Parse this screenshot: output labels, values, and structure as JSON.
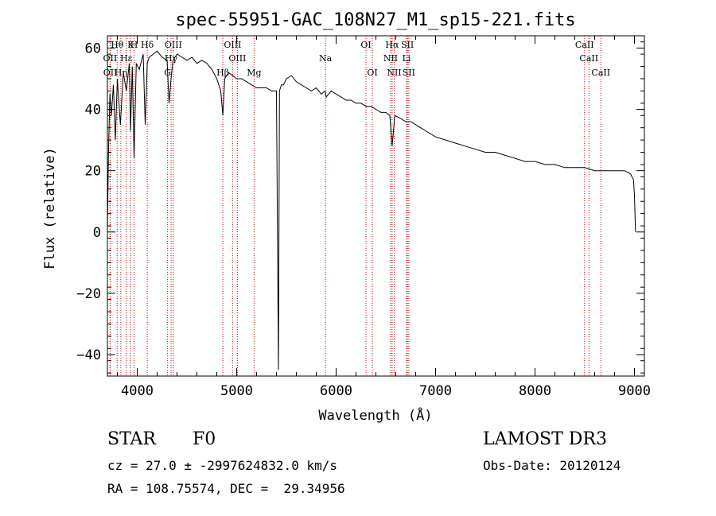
{
  "colors": {
    "axis": "#000000",
    "spectrum": "#000000",
    "line_marker": "#cc0000"
  },
  "chart_data": {
    "type": "line",
    "title": "spec-55951-GAC_108N27_M1_sp15-221.fits",
    "xlabel": "Wavelength (Å)",
    "ylabel": "Flux (relative)",
    "xlim": [
      3700,
      9100
    ],
    "ylim": [
      -47,
      64
    ],
    "xticks": [
      4000,
      5000,
      6000,
      7000,
      8000,
      9000
    ],
    "yticks": [
      -40,
      -20,
      0,
      20,
      40,
      60
    ],
    "spectrum": {
      "x": [
        3700,
        3710,
        3725,
        3740,
        3760,
        3780,
        3800,
        3830,
        3860,
        3890,
        3920,
        3933,
        3950,
        3968,
        3990,
        4020,
        4060,
        4080,
        4101,
        4120,
        4160,
        4200,
        4250,
        4300,
        4320,
        4340,
        4360,
        4400,
        4450,
        4500,
        4550,
        4600,
        4650,
        4700,
        4750,
        4800,
        4840,
        4861,
        4880,
        4920,
        4960,
        5000,
        5050,
        5100,
        5150,
        5200,
        5250,
        5300,
        5350,
        5400,
        5420,
        5430,
        5440,
        5450,
        5470,
        5500,
        5550,
        5600,
        5650,
        5700,
        5750,
        5800,
        5850,
        5890,
        5900,
        5950,
        6000,
        6050,
        6100,
        6150,
        6200,
        6250,
        6300,
        6350,
        6400,
        6450,
        6500,
        6540,
        6563,
        6590,
        6650,
        6700,
        6750,
        6800,
        6850,
        6900,
        7000,
        7100,
        7200,
        7300,
        7400,
        7500,
        7600,
        7700,
        7800,
        7900,
        8000,
        8100,
        8200,
        8300,
        8400,
        8500,
        8600,
        8700,
        8800,
        8900,
        8960,
        8990,
        9000,
        9010
      ],
      "y": [
        0,
        25,
        45,
        38,
        48,
        30,
        50,
        35,
        52,
        46,
        55,
        33,
        54,
        24,
        55,
        53,
        58,
        35,
        55,
        57,
        58,
        59,
        57,
        56,
        42,
        50,
        56,
        58,
        57,
        56,
        57,
        55,
        56,
        55,
        53,
        50,
        46,
        38,
        50,
        52,
        51,
        50,
        50,
        49,
        48,
        47,
        47,
        47,
        46,
        46,
        -45,
        46,
        47,
        48,
        48,
        50,
        51,
        49,
        48,
        47,
        46,
        47,
        45,
        46,
        44,
        46,
        45,
        44,
        43,
        43,
        42,
        42,
        41,
        41,
        40,
        39,
        39,
        38,
        28,
        38,
        37,
        36,
        36,
        35,
        34,
        33,
        31,
        30,
        29,
        28,
        27,
        26,
        26,
        25,
        24,
        23,
        23,
        22,
        22,
        21,
        21,
        21,
        20,
        20,
        20,
        20,
        19,
        17,
        12,
        0
      ]
    },
    "lines": [
      {
        "name": "Hθ",
        "x": 3798,
        "row": 0
      },
      {
        "name": "OII",
        "x": 3727,
        "row": 1
      },
      {
        "name": "OII",
        "x": 3729,
        "row": 2
      },
      {
        "name": "Hε",
        "x": 3890,
        "row": 1
      },
      {
        "name": "Hη",
        "x": 3835,
        "row": 2
      },
      {
        "name": "K",
        "x": 3934,
        "row": 0
      },
      {
        "name": "H",
        "x": 3968,
        "row": 0
      },
      {
        "name": "Hδ",
        "x": 4101,
        "row": 0
      },
      {
        "name": "G",
        "x": 4305,
        "row": 2
      },
      {
        "name": "OIII",
        "x": 4363,
        "row": 0
      },
      {
        "name": "Hγ",
        "x": 4340,
        "row": 1
      },
      {
        "name": "OIII",
        "x": 4959,
        "row": 0
      },
      {
        "name": "OIII",
        "x": 5007,
        "row": 1
      },
      {
        "name": "Hβ",
        "x": 4861,
        "row": 2
      },
      {
        "name": "Mg",
        "x": 5175,
        "row": 2
      },
      {
        "name": "Na",
        "x": 5893,
        "row": 1
      },
      {
        "name": "OI",
        "x": 6300,
        "row": 0
      },
      {
        "name": "OI",
        "x": 6364,
        "row": 2
      },
      {
        "name": "Hα",
        "x": 6563,
        "row": 0
      },
      {
        "name": "NII",
        "x": 6548,
        "row": 1
      },
      {
        "name": "NII",
        "x": 6584,
        "row": 2
      },
      {
        "name": "SII",
        "x": 6717,
        "row": 0
      },
      {
        "name": "Li",
        "x": 6708,
        "row": 1
      },
      {
        "name": "SII",
        "x": 6731,
        "row": 2
      },
      {
        "name": "CaII",
        "x": 8498,
        "row": 0
      },
      {
        "name": "CaII",
        "x": 8542,
        "row": 1
      },
      {
        "name": "CaII",
        "x": 8662,
        "row": 2
      }
    ]
  },
  "info": {
    "object_class": "STAR",
    "subclass": "F0",
    "survey": "LAMOST DR3",
    "redshift": "cz = 27.0 ± -2997624832.0 km/s",
    "obs_date": "Obs-Date: 20120124",
    "coords": "RA = 108.75574, DEC =  29.34956"
  }
}
